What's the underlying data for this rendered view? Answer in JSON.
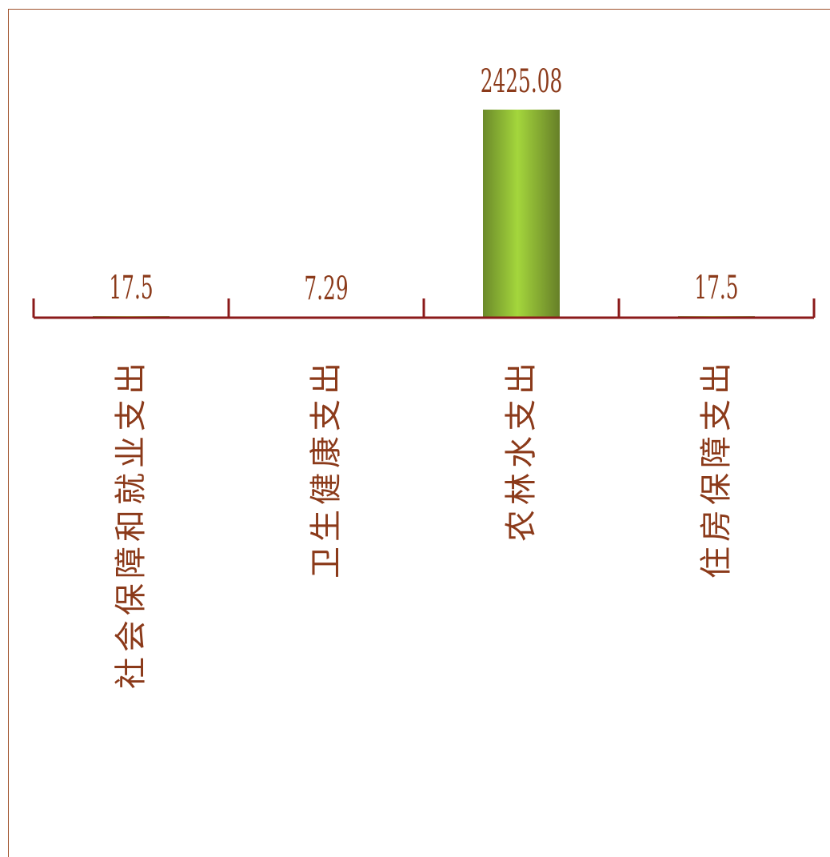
{
  "chart_data": {
    "type": "bar",
    "categories": [
      "社会保障和就业支出",
      "卫生健康支出",
      "农林水支出",
      "住房保障支出"
    ],
    "values": [
      17.5,
      7.29,
      2425.08,
      17.5
    ],
    "value_labels": [
      "17.5",
      "7.29",
      "2425.08",
      "17.5"
    ],
    "title": "",
    "xlabel": "",
    "ylabel": "",
    "ylim": [
      0,
      2425.08
    ],
    "grid": false,
    "legend": "none",
    "colors": {
      "bar_dark": "#6b8a2a",
      "bar_light": "#a4d63c",
      "axis": "#8b1a1a",
      "text": "#8b3a1a",
      "frame": "#a0522d"
    }
  }
}
